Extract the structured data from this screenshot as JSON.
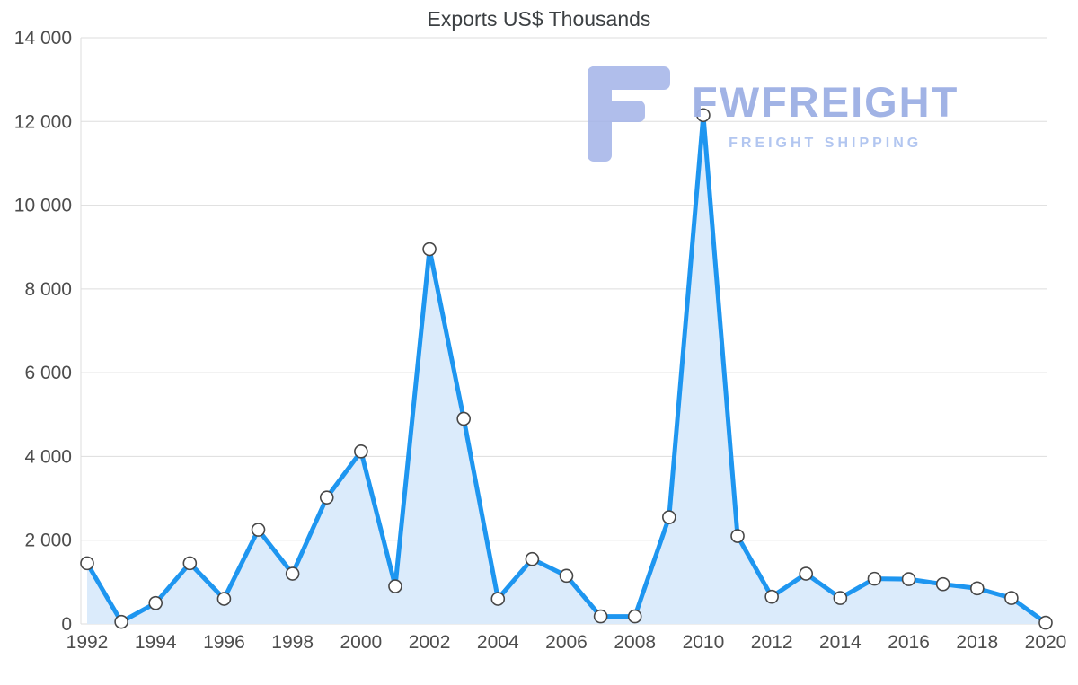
{
  "title": "Exports US$ Thousands",
  "watermark": {
    "brand": "FWFREIGHT",
    "tagline": "FREIGHT SHIPPING",
    "logo_color": "#a3b3e8"
  },
  "chart_data": {
    "type": "area",
    "title": "Exports US$ Thousands",
    "x": [
      1992,
      1993,
      1994,
      1995,
      1996,
      1997,
      1998,
      1999,
      2000,
      2001,
      2002,
      2003,
      2004,
      2005,
      2006,
      2007,
      2008,
      2009,
      2010,
      2011,
      2012,
      2013,
      2014,
      2015,
      2016,
      2017,
      2018,
      2019,
      2020
    ],
    "values": [
      1450,
      50,
      500,
      1450,
      600,
      2250,
      1200,
      3020,
      4120,
      900,
      8950,
      4900,
      600,
      1550,
      1150,
      180,
      180,
      2550,
      12150,
      2100,
      650,
      1200,
      620,
      1080,
      1070,
      950,
      850,
      620,
      30
    ],
    "xlabel": "",
    "ylabel": "",
    "ylim": [
      0,
      14000
    ],
    "y_ticks": [
      0,
      2000,
      4000,
      6000,
      8000,
      10000,
      12000,
      14000
    ],
    "y_tick_labels": [
      "0",
      "2 000",
      "4 000",
      "6 000",
      "8 000",
      "10 000",
      "12 000",
      "14 000"
    ],
    "x_tick_years": [
      1992,
      1994,
      1996,
      1998,
      2000,
      2002,
      2004,
      2006,
      2008,
      2010,
      2012,
      2014,
      2016,
      2018,
      2020
    ],
    "x_tick_labels": [
      "1992",
      "1994",
      "1996",
      "1998",
      "2000",
      "2002",
      "2004",
      "2006",
      "2008",
      "2010",
      "2012",
      "2014",
      "2016",
      "2018",
      "2020"
    ],
    "grid": true,
    "legend": "none",
    "colors": {
      "line": "#1e96f0",
      "fill": "#dbebfb",
      "marker_fill": "#ffffff",
      "marker_stroke": "#474747",
      "grid": "#dddddd",
      "tick_text": "#4d4d4d"
    }
  }
}
